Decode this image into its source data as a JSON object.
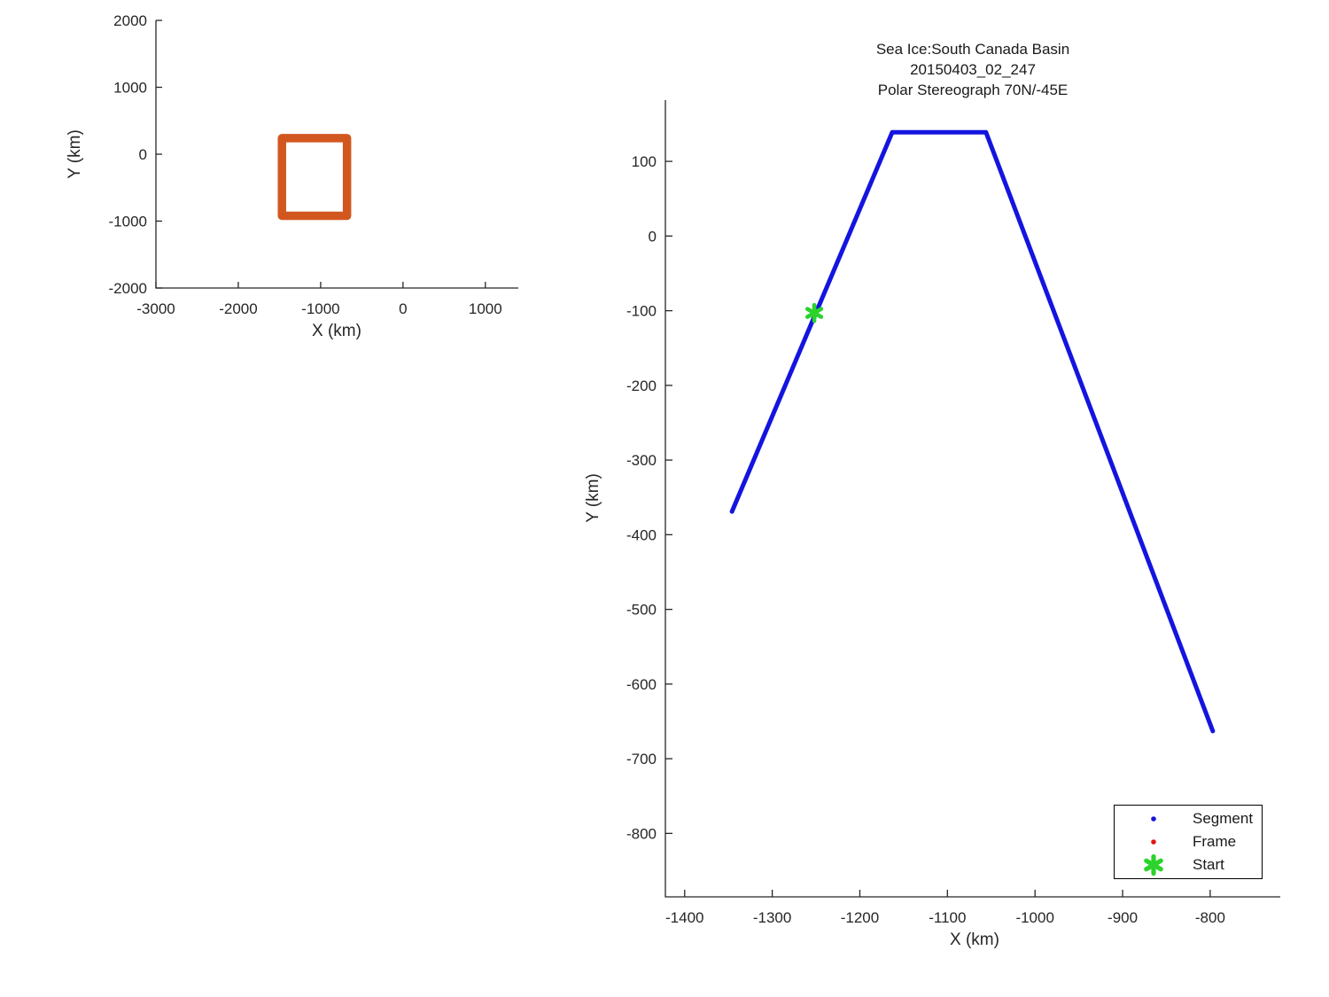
{
  "figure": {
    "background": "#ffffff",
    "axis_color": "#262626"
  },
  "chart_data": [
    {
      "id": "overview",
      "type": "line",
      "title": "",
      "xlabel": "X (km)",
      "ylabel": "Y (km)",
      "xlim": [
        -3000,
        1400
      ],
      "ylim": [
        -2000,
        2000
      ],
      "xticks": [
        -3000,
        -2000,
        -1000,
        0,
        1000
      ],
      "yticks": [
        -2000,
        -1000,
        0,
        1000,
        2000
      ],
      "grid": false,
      "legend_position": "none",
      "series": [
        {
          "name": "coverage-box",
          "color": "#D2571F",
          "linewidth": 9.5,
          "points": [
            [
              -1470,
              240
            ],
            [
              -680,
              240
            ],
            [
              -680,
              -920
            ],
            [
              -1470,
              -920
            ],
            [
              -1470,
              240
            ]
          ]
        }
      ]
    },
    {
      "id": "detail",
      "type": "line",
      "title_lines": [
        "Sea Ice:South Canada Basin",
        "20150403_02_247",
        "Polar Stereograph 70N/-45E"
      ],
      "xlabel": "X (km)",
      "ylabel": "Y (km)",
      "xlim": [
        -1422,
        -720
      ],
      "ylim": [
        -885,
        182
      ],
      "xticks": [
        -1400,
        -1300,
        -1200,
        -1100,
        -1000,
        -900,
        -800
      ],
      "yticks": [
        100,
        0,
        -100,
        -200,
        -300,
        -400,
        -500,
        -600,
        -700,
        -800
      ],
      "grid": false,
      "legend_position": "lower-right",
      "series": [
        {
          "name": "segment-track",
          "color": "#1414E0",
          "linewidth": 5,
          "points": [
            [
              -1346,
              -369
            ],
            [
              -1163,
              139
            ],
            [
              -1056,
              139
            ],
            [
              -797,
              -663
            ]
          ]
        }
      ],
      "markers": [
        {
          "name": "start-point",
          "shape": "asterisk",
          "color": "#2BD32B",
          "x": -1252,
          "y": -103,
          "size": 9
        }
      ],
      "legend": {
        "entries": [
          {
            "label": "Segment",
            "marker": "dot",
            "color": "#1414E0"
          },
          {
            "label": "Frame",
            "marker": "dot",
            "color": "#E01414"
          },
          {
            "label": "Start",
            "marker": "asterisk",
            "color": "#2BD32B"
          }
        ]
      }
    }
  ]
}
